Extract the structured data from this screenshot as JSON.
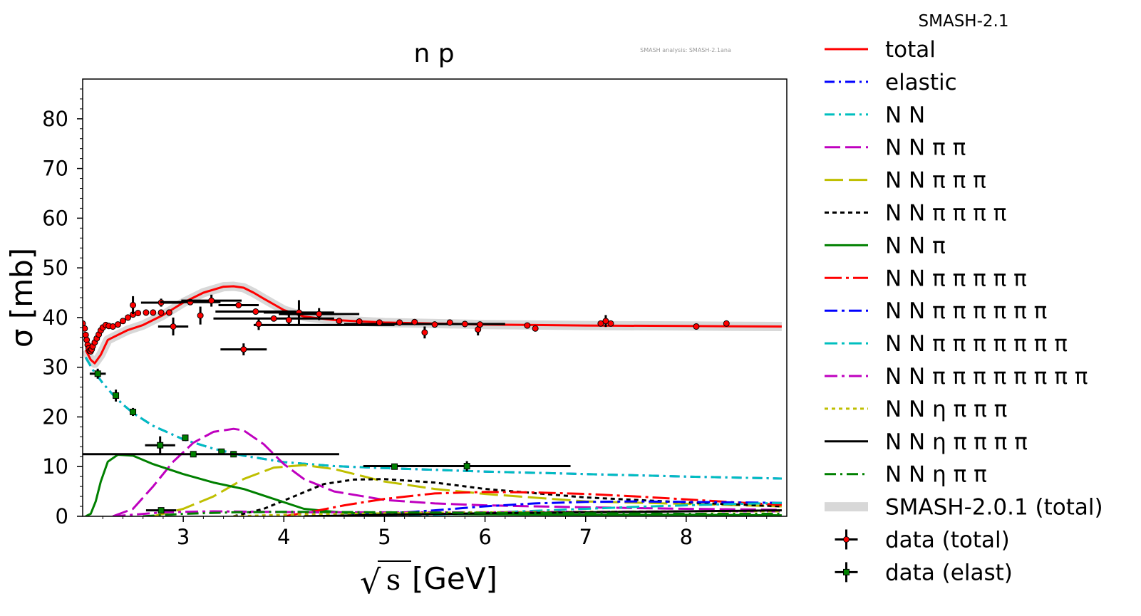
{
  "chart_data": {
    "type": "line",
    "title": "n p",
    "watermark": "SMASH analysis: SMASH-2.1ana",
    "legend_title": "SMASH-2.1",
    "xlabel": "[GeV]",
    "ylabel": "σ [mb]",
    "xlim": [
      2.0,
      9.0
    ],
    "ylim": [
      0,
      88
    ],
    "xticks": [
      3,
      4,
      5,
      6,
      7,
      8
    ],
    "yticks": [
      0,
      10,
      20,
      30,
      40,
      50,
      60,
      70,
      80
    ],
    "grid": false,
    "legend_position": "outside-right",
    "series": [
      {
        "name": "total",
        "color": "#ff0000",
        "dash": "solid",
        "width": 3,
        "x": [
          2.03,
          2.08,
          2.12,
          2.18,
          2.25,
          2.35,
          2.45,
          2.6,
          2.8,
          3.0,
          3.2,
          3.4,
          3.5,
          3.6,
          3.7,
          3.8,
          4.0,
          4.2,
          4.5,
          5.0,
          6.0,
          7.0,
          8.0,
          8.95
        ],
        "y": [
          33.5,
          31.5,
          30.8,
          32.5,
          35.5,
          36.5,
          37.5,
          38.5,
          40.5,
          43,
          45,
          46.2,
          46.3,
          46,
          45,
          43.8,
          41.5,
          40.2,
          39.5,
          39,
          38.6,
          38.4,
          38.3,
          38.2
        ]
      },
      {
        "name": "elastic",
        "color": "#0000ff",
        "dash": "14,6,3,6",
        "width": 3,
        "x": [
          2.03,
          2.1,
          2.2,
          2.3,
          2.4,
          2.5,
          2.7,
          3.0,
          3.3,
          3.6,
          4.0,
          4.5,
          5.0,
          6.0,
          7.0,
          8.0,
          8.95
        ],
        "y": [
          32,
          29.5,
          26.8,
          24.5,
          22.5,
          20.8,
          18.2,
          15.5,
          13.6,
          12.2,
          10.9,
          10.1,
          9.7,
          9.0,
          8.5,
          8.0,
          7.6
        ]
      },
      {
        "name": "N N",
        "color": "#00bfbf",
        "dash": "14,6,3,6",
        "width": 3,
        "x": [
          2.03,
          2.1,
          2.2,
          2.3,
          2.4,
          2.5,
          2.7,
          3.0,
          3.3,
          3.6,
          4.0,
          4.5,
          5.0,
          6.0,
          7.0,
          8.0,
          8.95
        ],
        "y": [
          32,
          29.5,
          26.8,
          24.5,
          22.5,
          20.8,
          18.2,
          15.5,
          13.6,
          12.2,
          10.9,
          10.1,
          9.7,
          9.0,
          8.5,
          8.0,
          7.6
        ]
      },
      {
        "name": "N N π π",
        "color": "#bf00bf",
        "dash": "22,7",
        "width": 3,
        "x": [
          2.3,
          2.5,
          2.7,
          2.9,
          3.1,
          3.3,
          3.5,
          3.6,
          3.8,
          4.0,
          4.2,
          4.5,
          5.0,
          5.5,
          6.0,
          7.0,
          8.0,
          8.95
        ],
        "y": [
          0,
          1.5,
          6,
          11,
          14.8,
          17,
          17.6,
          17.3,
          14.5,
          10.5,
          7.5,
          5,
          3.3,
          2.6,
          2.2,
          1.8,
          1.5,
          1.3
        ]
      },
      {
        "name": "N N π π π",
        "color": "#bfbf00",
        "dash": "26,8",
        "width": 3,
        "x": [
          2.7,
          3.0,
          3.3,
          3.6,
          3.9,
          4.2,
          4.5,
          4.8,
          5.0,
          5.5,
          6.0,
          7.0,
          8.0,
          8.95
        ],
        "y": [
          0,
          1.5,
          4,
          7.5,
          9.8,
          10.3,
          9.5,
          8,
          7,
          5.5,
          4.5,
          3,
          2.5,
          2
        ]
      },
      {
        "name": "N N π π π π",
        "color": "#000000",
        "dash": "6,5",
        "width": 3,
        "x": [
          3.5,
          3.8,
          4.1,
          4.4,
          4.7,
          5.0,
          5.5,
          6.0,
          7.0,
          8.0,
          8.95
        ],
        "y": [
          0,
          1.5,
          4,
          6.5,
          7.4,
          7.5,
          6.8,
          5.5,
          3.8,
          2.8,
          2
        ]
      },
      {
        "name": "N N π",
        "color": "#008000",
        "dash": "solid",
        "width": 3,
        "x": [
          2.03,
          2.08,
          2.13,
          2.18,
          2.25,
          2.35,
          2.5,
          2.7,
          3.0,
          3.3,
          3.6,
          3.9,
          4.2,
          4.6,
          5.0,
          6.0,
          7.0,
          8.0,
          8.95
        ],
        "y": [
          0,
          0.5,
          3,
          7,
          11,
          12.4,
          12.2,
          10.5,
          8.5,
          6.8,
          5.5,
          3.5,
          1.5,
          0.7,
          0.5,
          0.4,
          0.3,
          0.3,
          0.2
        ]
      },
      {
        "name": "N N π π π π π",
        "color": "#ff0000",
        "dash": "24,6,4,6",
        "width": 3,
        "x": [
          4.0,
          4.3,
          4.6,
          5.0,
          5.5,
          6.0,
          6.5,
          7.0,
          7.5,
          8.0,
          8.5,
          8.95
        ],
        "y": [
          0,
          1,
          2.2,
          3.5,
          4.6,
          4.9,
          4.8,
          4.5,
          4.0,
          3.4,
          2.8,
          2.3
        ]
      },
      {
        "name": "N N π π π π π π",
        "color": "#0000ff",
        "dash": "18,6,4,6",
        "width": 3,
        "x": [
          4.5,
          5.0,
          5.5,
          6.0,
          6.5,
          7.0,
          7.5,
          8.0,
          8.5,
          8.95
        ],
        "y": [
          0,
          0.5,
          1.2,
          2,
          2.6,
          2.9,
          3.0,
          2.9,
          2.8,
          2.7
        ]
      },
      {
        "name": "N N π π π π π π π",
        "color": "#00bfbf",
        "dash": "18,6,4,6",
        "width": 3,
        "x": [
          5.0,
          5.5,
          6.0,
          6.5,
          7.0,
          7.5,
          8.0,
          8.5,
          8.95
        ],
        "y": [
          0,
          0.3,
          0.7,
          1.1,
          1.5,
          1.9,
          2.2,
          2.5,
          2.7
        ]
      },
      {
        "name": "N N π π π π π π π π",
        "color": "#bf00bf",
        "dash": "18,6,4,6",
        "width": 3,
        "x": [
          2.3,
          2.8,
          3.3,
          3.8,
          4.3,
          5.0,
          6.0,
          7.0,
          8.0,
          8.95
        ],
        "y": [
          0,
          0.8,
          1.0,
          0.9,
          0.8,
          0.8,
          0.8,
          0.9,
          1.0,
          1.0
        ]
      },
      {
        "name": "N N η π π π",
        "color": "#bfbf00",
        "dash": "5,5",
        "width": 3,
        "x": [
          3.5,
          4.0,
          5.0,
          6.0,
          7.0,
          8.0,
          8.95
        ],
        "y": [
          0,
          0.3,
          0.6,
          0.8,
          0.9,
          1.0,
          1.0
        ]
      },
      {
        "name": "N N η π π π π",
        "color": "#000000",
        "dash": "solid",
        "width": 3,
        "x": [
          4.2,
          5.0,
          6.0,
          7.0,
          8.0,
          8.95
        ],
        "y": [
          0,
          0.3,
          0.6,
          0.8,
          1.0,
          1.2
        ]
      },
      {
        "name": "N N η π π",
        "color": "#008000",
        "dash": "16,6,3,6",
        "width": 3,
        "x": [
          2.6,
          3.0,
          3.5,
          4.0,
          5.0,
          6.0,
          7.0,
          8.0,
          8.95
        ],
        "y": [
          0,
          0.5,
          0.8,
          0.9,
          0.8,
          0.7,
          0.6,
          0.5,
          0.5
        ]
      },
      {
        "name": "SMASH-2.0.1 (total)",
        "color": "#d8d8d8",
        "dash": "solid",
        "width": 13,
        "x": [
          2.03,
          2.08,
          2.12,
          2.18,
          2.25,
          2.35,
          2.45,
          2.6,
          2.8,
          3.0,
          3.2,
          3.4,
          3.5,
          3.6,
          3.7,
          3.8,
          4.0,
          4.2,
          4.5,
          5.0,
          6.0,
          7.0,
          8.0,
          8.95
        ],
        "y": [
          33.5,
          31.5,
          30.8,
          32.5,
          35.5,
          36.5,
          37.5,
          38.5,
          40.5,
          43,
          45,
          46.2,
          46.3,
          46,
          45,
          43.8,
          41.5,
          40.2,
          39.5,
          39,
          38.6,
          38.4,
          38.3,
          38.2
        ]
      }
    ],
    "data_total": {
      "name": "data (total)",
      "color": "#ff0000",
      "points": [
        {
          "x": 2.0,
          "y": 38.8,
          "xerr": 0,
          "yerr": 0.6
        },
        {
          "x": 2.02,
          "y": 37.8,
          "xerr": 0,
          "yerr": 0.6
        },
        {
          "x": 2.03,
          "y": 36.5,
          "xerr": 0,
          "yerr": 0.6
        },
        {
          "x": 2.04,
          "y": 35.5,
          "xerr": 0,
          "yerr": 0.6
        },
        {
          "x": 2.05,
          "y": 34.5,
          "xerr": 0,
          "yerr": 0.6
        },
        {
          "x": 2.06,
          "y": 33.8,
          "xerr": 0,
          "yerr": 0.6
        },
        {
          "x": 2.07,
          "y": 33.3,
          "xerr": 0,
          "yerr": 0.6
        },
        {
          "x": 2.08,
          "y": 33.2,
          "xerr": 0,
          "yerr": 0.6
        },
        {
          "x": 2.09,
          "y": 33.6,
          "xerr": 0,
          "yerr": 0.6
        },
        {
          "x": 2.1,
          "y": 34.2,
          "xerr": 0,
          "yerr": 0.6
        },
        {
          "x": 2.12,
          "y": 35.0,
          "xerr": 0,
          "yerr": 0.6
        },
        {
          "x": 2.14,
          "y": 35.8,
          "xerr": 0,
          "yerr": 0.6
        },
        {
          "x": 2.16,
          "y": 36.6,
          "xerr": 0,
          "yerr": 0.6
        },
        {
          "x": 2.18,
          "y": 37.4,
          "xerr": 0,
          "yerr": 0.6
        },
        {
          "x": 2.2,
          "y": 38.0,
          "xerr": 0,
          "yerr": 0.6
        },
        {
          "x": 2.23,
          "y": 38.5,
          "xerr": 0,
          "yerr": 0.6
        },
        {
          "x": 2.26,
          "y": 38.3,
          "xerr": 0,
          "yerr": 0.6
        },
        {
          "x": 2.3,
          "y": 38.2,
          "xerr": 0,
          "yerr": 0.6
        },
        {
          "x": 2.35,
          "y": 38.6,
          "xerr": 0,
          "yerr": 0.6
        },
        {
          "x": 2.4,
          "y": 39.3,
          "xerr": 0,
          "yerr": 0.6
        },
        {
          "x": 2.45,
          "y": 40.0,
          "xerr": 0,
          "yerr": 0.6
        },
        {
          "x": 2.5,
          "y": 40.6,
          "xerr": 0,
          "yerr": 0.6
        },
        {
          "x": 2.55,
          "y": 40.9,
          "xerr": 0,
          "yerr": 0.6
        },
        {
          "x": 2.63,
          "y": 41.0,
          "xerr": 0,
          "yerr": 0.6
        },
        {
          "x": 2.7,
          "y": 41.0,
          "xerr": 0,
          "yerr": 0.6
        },
        {
          "x": 2.78,
          "y": 41.0,
          "xerr": 0,
          "yerr": 0.6
        },
        {
          "x": 2.86,
          "y": 41.0,
          "xerr": 0,
          "yerr": 0.6
        },
        {
          "x": 2.5,
          "y": 42.5,
          "xerr": 0,
          "yerr": 1.8
        },
        {
          "x": 2.78,
          "y": 43.0,
          "xerr": 0.2,
          "yerr": 0.8
        },
        {
          "x": 2.9,
          "y": 38.2,
          "xerr": 0.15,
          "yerr": 1.8
        },
        {
          "x": 3.07,
          "y": 43.1,
          "xerr": 0.3,
          "yerr": 0.6
        },
        {
          "x": 3.17,
          "y": 40.4,
          "xerr": 0,
          "yerr": 1.8
        },
        {
          "x": 3.28,
          "y": 43.4,
          "xerr": 0.3,
          "yerr": 1.2
        },
        {
          "x": 3.55,
          "y": 42.5,
          "xerr": 0.2,
          "yerr": 0.6
        },
        {
          "x": 3.6,
          "y": 33.6,
          "xerr": 0.23,
          "yerr": 1.2
        },
        {
          "x": 3.72,
          "y": 41.2,
          "xerr": 0.4,
          "yerr": 0.6
        },
        {
          "x": 3.75,
          "y": 38.7,
          "xerr": 0,
          "yerr": 1.2
        },
        {
          "x": 3.9,
          "y": 39.8,
          "xerr": 0.6,
          "yerr": 0.6
        },
        {
          "x": 4.05,
          "y": 39.5,
          "xerr": 0,
          "yerr": 1.2
        },
        {
          "x": 4.15,
          "y": 41.0,
          "xerr": 0.35,
          "yerr": 2.5
        },
        {
          "x": 4.35,
          "y": 40.7,
          "xerr": 0.4,
          "yerr": 1.2
        },
        {
          "x": 4.55,
          "y": 39.3,
          "xerr": 0,
          "yerr": 0.6
        },
        {
          "x": 4.75,
          "y": 39.2,
          "xerr": 0,
          "yerr": 0.6
        },
        {
          "x": 4.95,
          "y": 39.0,
          "xerr": 0,
          "yerr": 0.6
        },
        {
          "x": 5.15,
          "y": 39.0,
          "xerr": 0,
          "yerr": 0.6
        },
        {
          "x": 5.3,
          "y": 39.1,
          "xerr": 0,
          "yerr": 0.6
        },
        {
          "x": 5.4,
          "y": 37.0,
          "xerr": 0,
          "yerr": 1.2
        },
        {
          "x": 5.5,
          "y": 38.6,
          "xerr": 0,
          "yerr": 0.6
        },
        {
          "x": 5.65,
          "y": 39.0,
          "xerr": 0,
          "yerr": 0.6
        },
        {
          "x": 5.8,
          "y": 38.7,
          "xerr": 0,
          "yerr": 0.6
        },
        {
          "x": 5.93,
          "y": 37.6,
          "xerr": 0,
          "yerr": 1.2
        },
        {
          "x": 5.95,
          "y": 38.6,
          "xerr": 0,
          "yerr": 0.6
        },
        {
          "x": 6.42,
          "y": 38.4,
          "xerr": 0,
          "yerr": 0.6
        },
        {
          "x": 6.5,
          "y": 37.8,
          "xerr": 0,
          "yerr": 0.6
        },
        {
          "x": 7.15,
          "y": 38.8,
          "xerr": 0,
          "yerr": 0.6
        },
        {
          "x": 7.2,
          "y": 39.3,
          "xerr": 0,
          "yerr": 1.2
        },
        {
          "x": 7.25,
          "y": 38.8,
          "xerr": 0,
          "yerr": 0.6
        },
        {
          "x": 8.1,
          "y": 38.2,
          "xerr": 0,
          "yerr": 0.6
        },
        {
          "x": 8.4,
          "y": 38.8,
          "xerr": 0,
          "yerr": 0.6
        }
      ],
      "bands": [
        {
          "x": 4.4,
          "y": 38.5,
          "xerr": 0.7
        },
        {
          "x": 5.4,
          "y": 38.7,
          "xerr": 0.8
        }
      ]
    },
    "data_elast": {
      "name": "data (elast)",
      "color": "#008000",
      "points": [
        {
          "x": 2.15,
          "y": 28.7,
          "xerr": 0.08,
          "yerr": 1.0
        },
        {
          "x": 2.33,
          "y": 24.3,
          "xerr": 0,
          "yerr": 1.2
        },
        {
          "x": 2.5,
          "y": 21.0,
          "xerr": 0,
          "yerr": 0.8
        },
        {
          "x": 2.77,
          "y": 14.3,
          "xerr": 0.15,
          "yerr": 1.8
        },
        {
          "x": 3.02,
          "y": 15.8,
          "xerr": 0,
          "yerr": 0.6
        },
        {
          "x": 3.38,
          "y": 13.0,
          "xerr": 0,
          "yerr": 0.5
        },
        {
          "x": 3.5,
          "y": 12.5,
          "xerr": 0,
          "yerr": 0.5
        },
        {
          "x": 3.1,
          "y": 12.5,
          "xerr": 1.45,
          "yerr": 0
        },
        {
          "x": 5.82,
          "y": 10.1,
          "xerr": 1.03,
          "yerr": 1.0
        },
        {
          "x": 5.1,
          "y": 10.0,
          "xerr": 0,
          "yerr": 0
        },
        {
          "x": 2.78,
          "y": 1.2,
          "xerr": 0.15,
          "yerr": 0.5
        }
      ]
    }
  }
}
